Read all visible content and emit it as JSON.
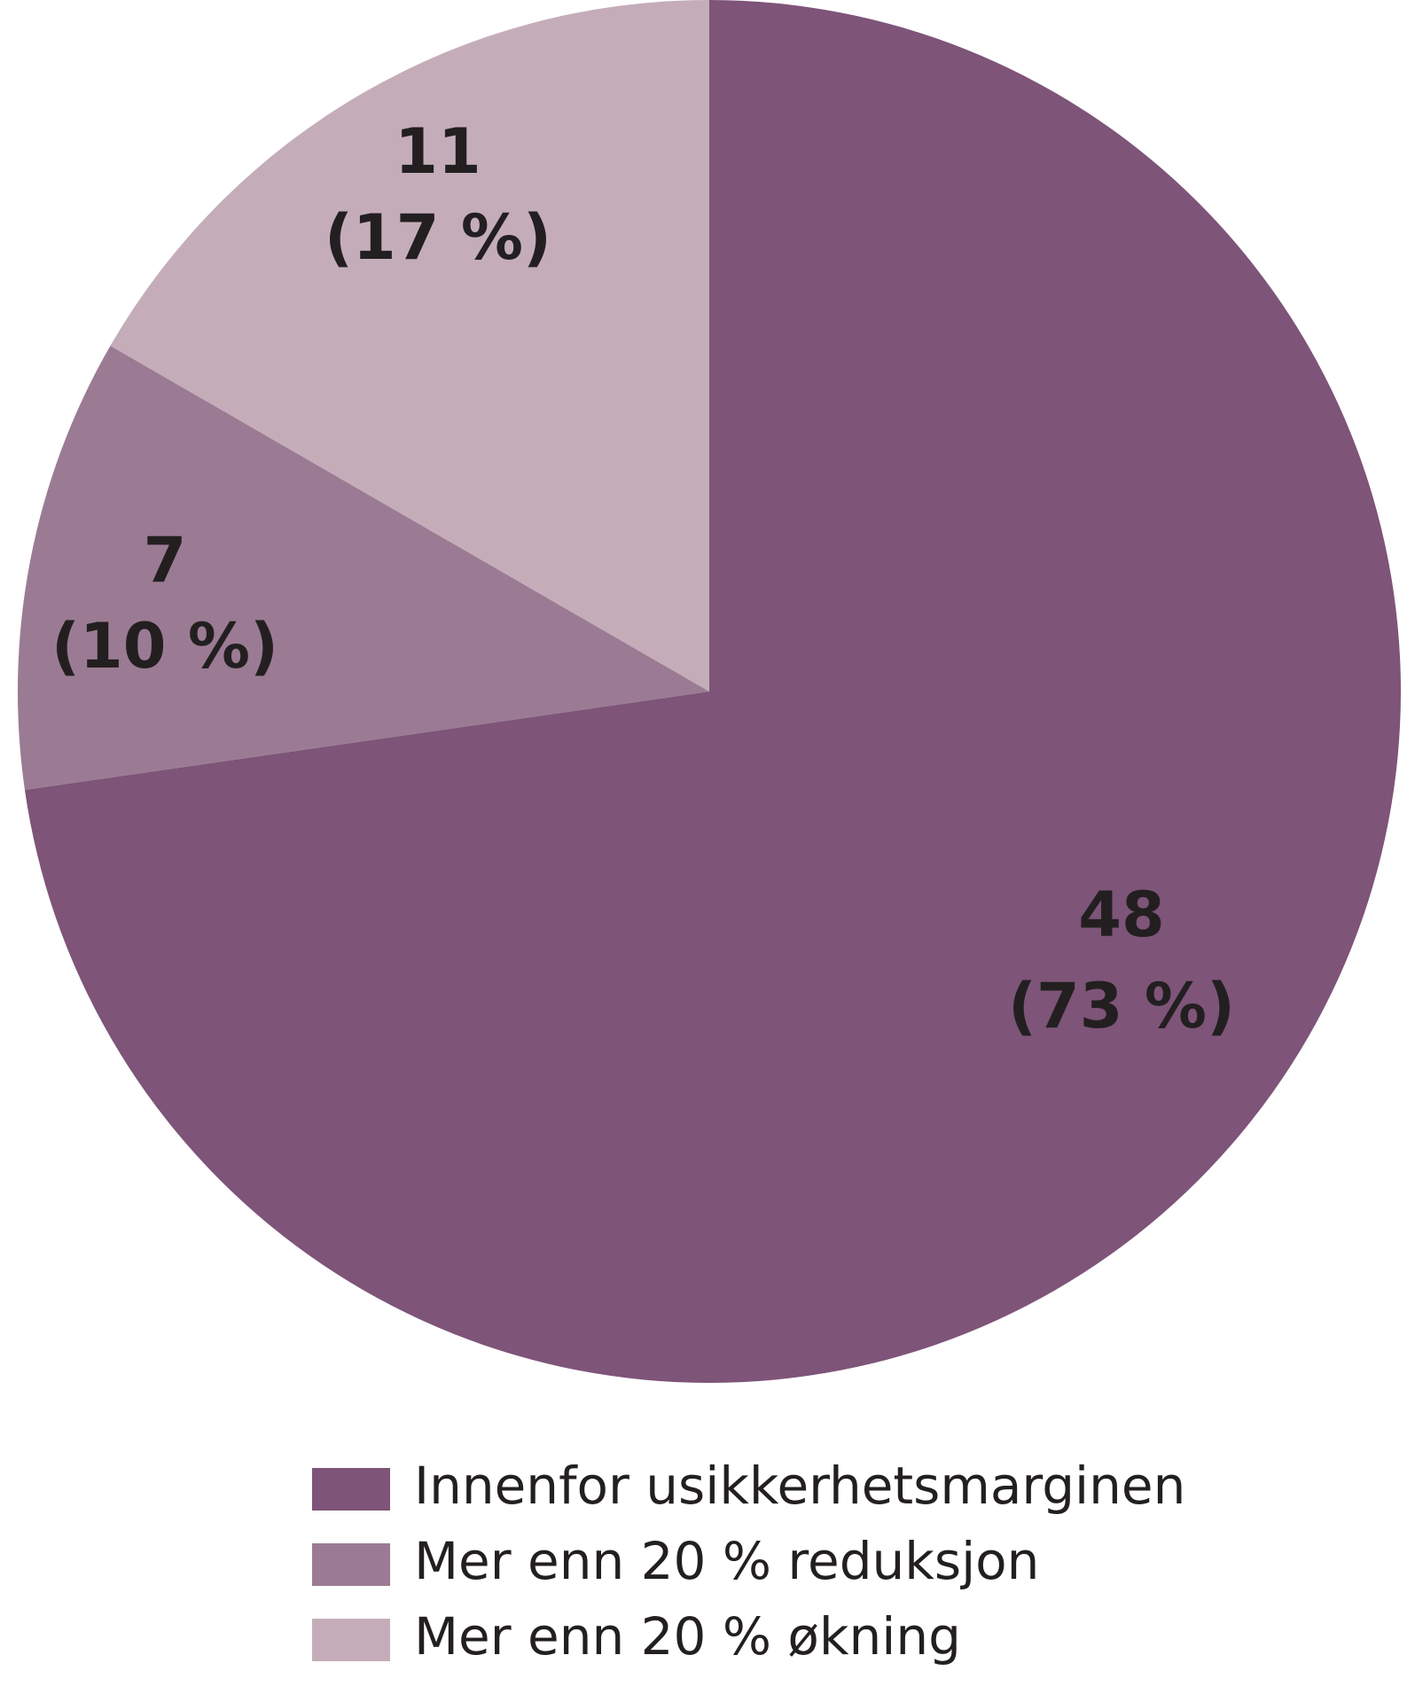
{
  "chart_data": {
    "type": "pie",
    "categories": [
      "Innenfor usikkerhetsmarginen",
      "Mer enn 20 % reduksjon",
      "Mer enn 20 % økning"
    ],
    "values": [
      48,
      7,
      11
    ],
    "percent_labels": [
      "(73 %)",
      "(10 %)",
      "(17 %)"
    ],
    "colors": [
      "#7e5479",
      "#9b7b93",
      "#c4adb9"
    ],
    "legend": "bottom"
  }
}
